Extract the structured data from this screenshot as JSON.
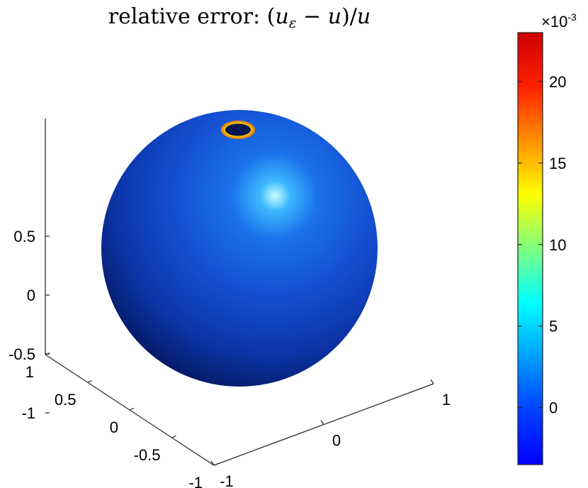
{
  "chart_data": {
    "type": "surface",
    "title": "relative error: (uε − u)/u",
    "title_parts": {
      "lead": "relative error: ",
      "open": "(",
      "var1": "u",
      "sub": "ε",
      "minus": " − ",
      "var2": "u",
      "close": ")/",
      "var3": "u"
    },
    "shape": "sphere",
    "radius": 1,
    "axes": {
      "x": {
        "ticks": [
          -1,
          0,
          1
        ],
        "labels": [
          "-1",
          "0",
          "1"
        ]
      },
      "y": {
        "ticks": [
          -1,
          -0.5,
          0,
          0.5,
          1
        ],
        "labels": [
          "-1",
          "-0.5",
          "0",
          "0.5",
          "1"
        ]
      },
      "z": {
        "ticks": [
          -1,
          -0.5,
          0,
          0.5
        ],
        "labels": [
          "-1",
          "-0.5",
          "0",
          "0.5"
        ]
      }
    },
    "colorbar": {
      "colormap": "jet",
      "min": -3.5,
      "max": 23,
      "ticks": [
        0,
        5,
        10,
        15,
        20
      ],
      "labels": [
        "0",
        "5",
        "10",
        "15",
        "20"
      ],
      "exponent_label": "×10",
      "exponent_power": "-3"
    },
    "surface_colors": {
      "base": "#1447c8",
      "dark": "#02104a",
      "highlight": "#ccffff",
      "hole": "#06154f",
      "ring": "#f08a00"
    }
  }
}
